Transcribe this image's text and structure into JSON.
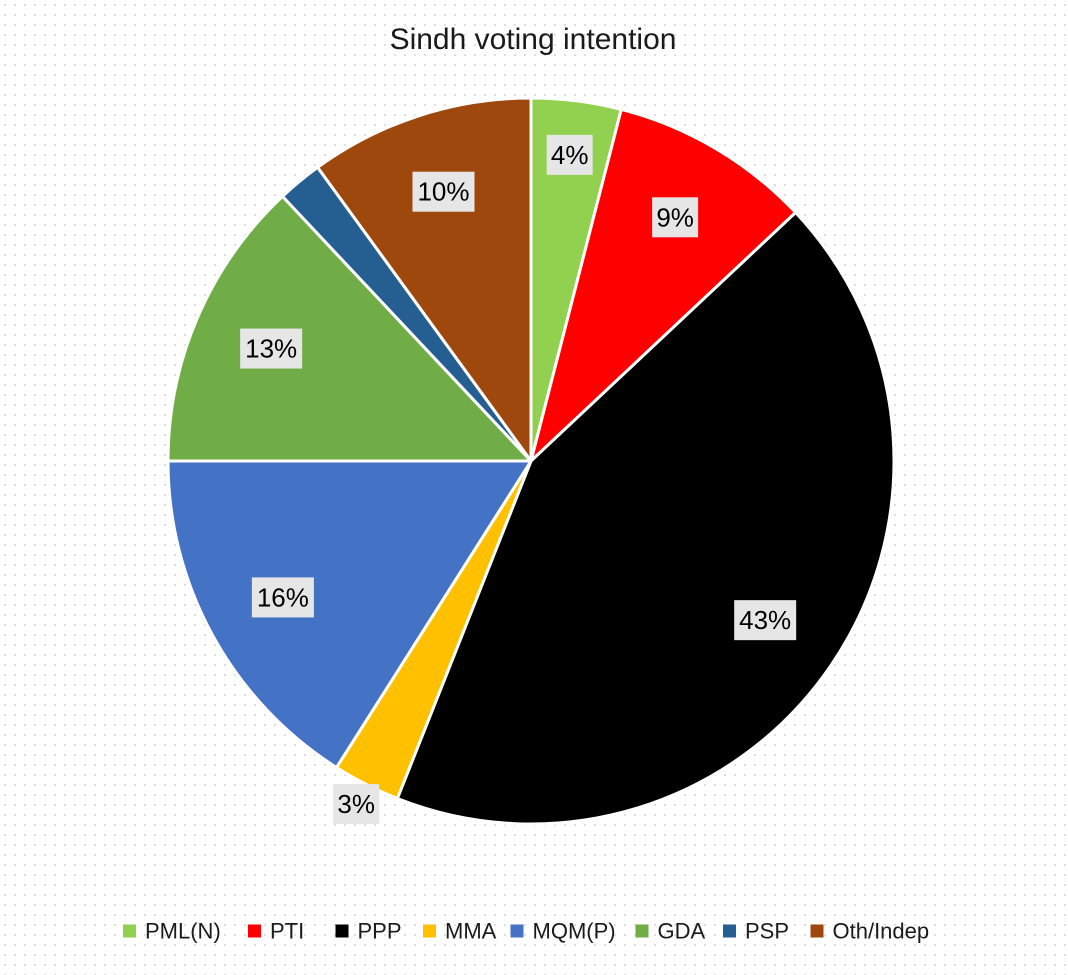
{
  "chart_data": {
    "type": "pie",
    "title": "Sindh voting intention",
    "series": [
      {
        "name": "PML(N)",
        "value": 4,
        "label": "4%",
        "color": "#92d050"
      },
      {
        "name": "PTI",
        "value": 9,
        "label": "9%",
        "color": "#ff0000"
      },
      {
        "name": "PPP",
        "value": 43,
        "label": "43%",
        "color": "#000000"
      },
      {
        "name": "MMA",
        "value": 3,
        "label": "3%",
        "color": "#ffc000"
      },
      {
        "name": "MQM(P)",
        "value": 16,
        "label": "16%",
        "color": "#4472c4"
      },
      {
        "name": "GDA",
        "value": 13,
        "label": "13%",
        "color": "#70ad47"
      },
      {
        "name": "PSP",
        "value": 2,
        "label": "",
        "color": "#255e91"
      },
      {
        "name": "Oth/Indep",
        "value": 10,
        "label": "10%",
        "color": "#9e480e"
      }
    ],
    "legend_position": "bottom",
    "start_angle": "12 o'clock",
    "direction": "clockwise"
  }
}
